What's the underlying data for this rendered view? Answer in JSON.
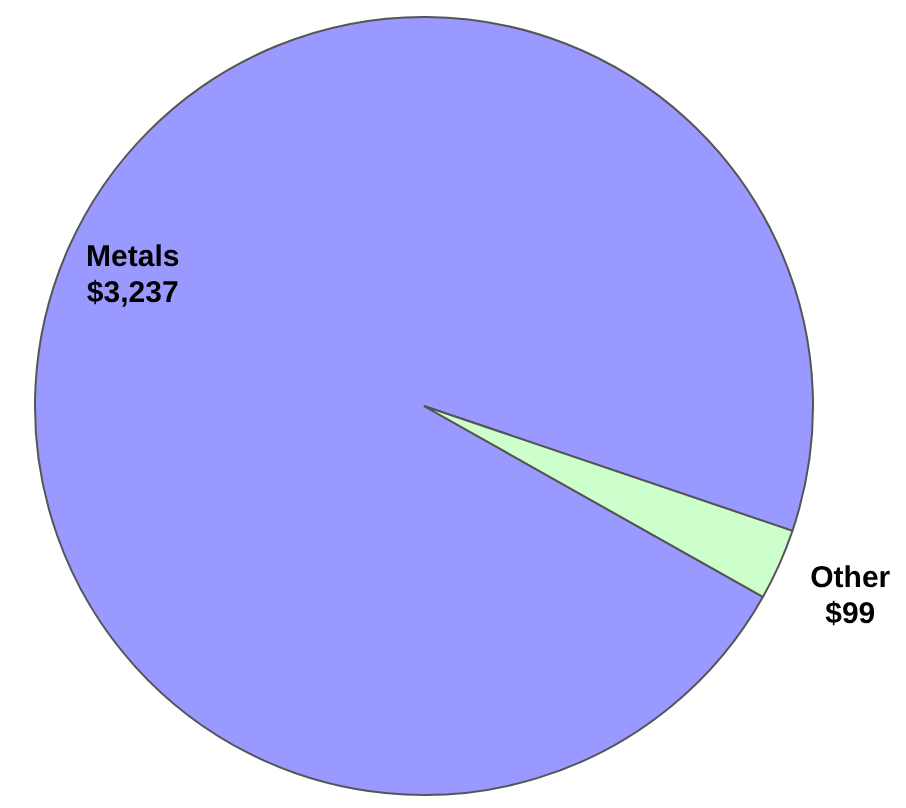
{
  "chart_data": {
    "type": "pie",
    "categories": [
      "Metals",
      "Other"
    ],
    "values": [
      3237,
      99
    ],
    "colors": [
      "#9999ff",
      "#ccffcc"
    ],
    "value_labels": [
      "$3,237",
      "$99"
    ]
  }
}
